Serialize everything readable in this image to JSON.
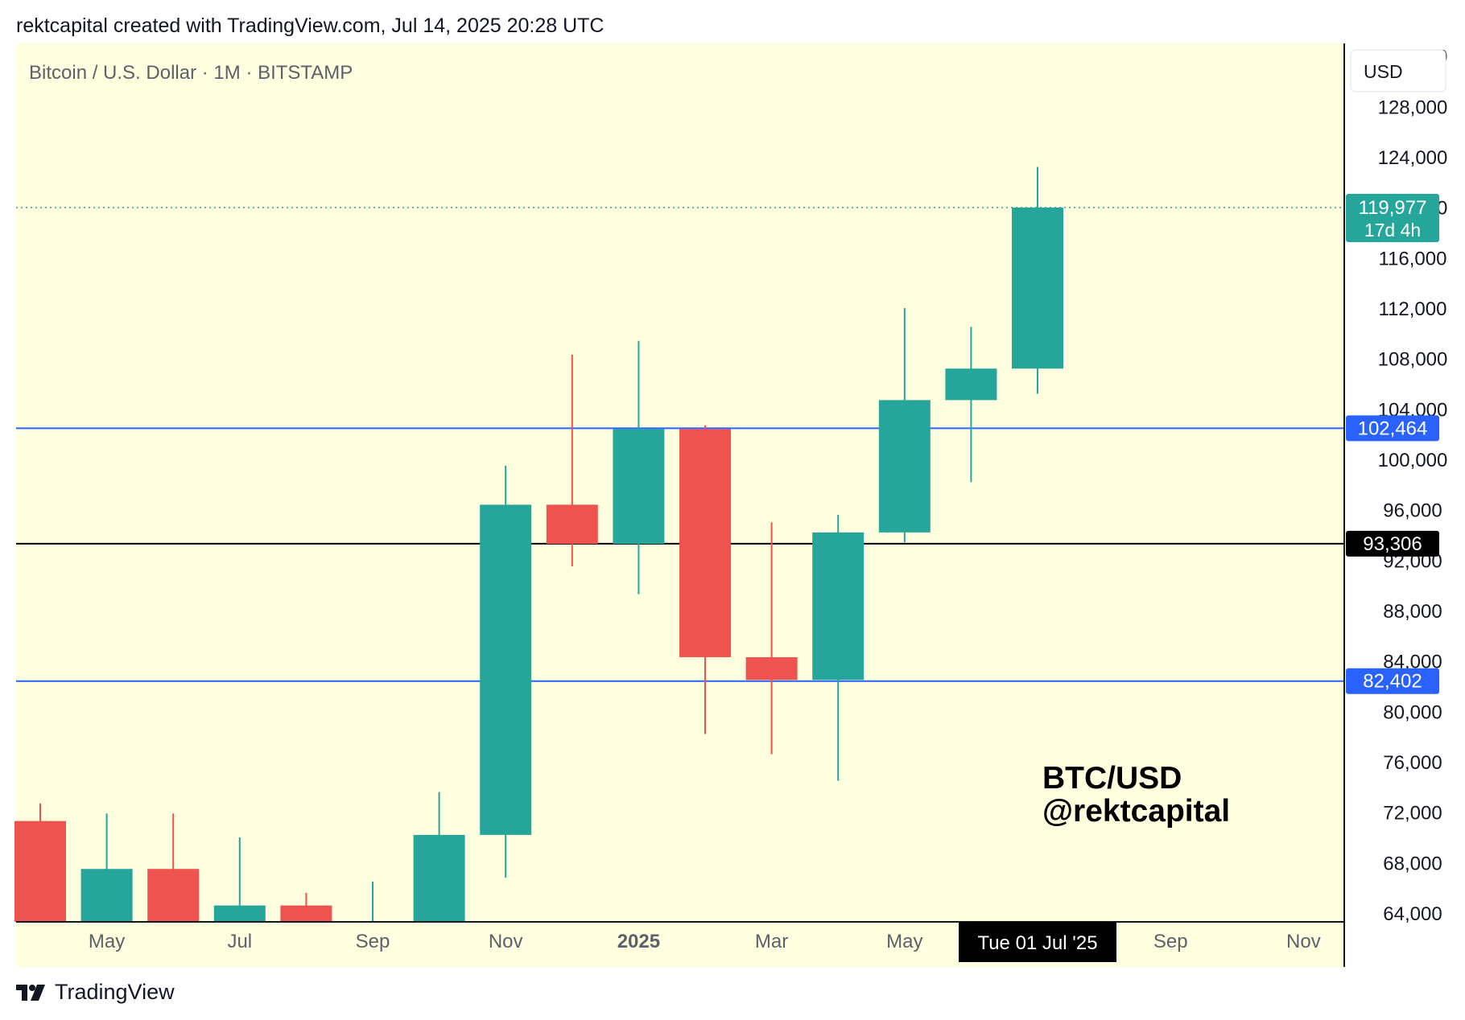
{
  "header": {
    "attribution": "rektcapital created with TradingView.com, Jul 14, 2025 20:28 UTC"
  },
  "footer": {
    "logo_icon": "tradingview-logo-icon",
    "label": "TradingView"
  },
  "colors": {
    "background": "#ffffe0",
    "up": "#26a69a",
    "down": "#ef5350",
    "blue_level": "#2962ff",
    "black_level": "#000000"
  },
  "chart_data": {
    "type": "candlestick",
    "title": "Bitcoin / U.S. Dollar · 1M · BITSTAMP",
    "currency": "USD",
    "watermark": [
      "BTC/USD",
      "@rektcapital"
    ],
    "ylim": [
      63300,
      133000
    ],
    "y_ticks": [
      64000,
      68000,
      72000,
      76000,
      80000,
      84000,
      88000,
      92000,
      96000,
      100000,
      104000,
      108000,
      112000,
      116000,
      120000,
      124000,
      128000,
      132000
    ],
    "y_tick_labels": [
      "64,000",
      "68,000",
      "72,000",
      "76,000",
      "80,000",
      "84,000",
      "88,000",
      "92,000",
      "96,000",
      "100,000",
      "104,000",
      "108,000",
      "112,000",
      "116,000",
      "120,000",
      "124,000",
      "128,000",
      "132,000"
    ],
    "x_ticks": [
      {
        "index": 1,
        "label": "May",
        "bold": false
      },
      {
        "index": 3,
        "label": "Jul",
        "bold": false
      },
      {
        "index": 5,
        "label": "Sep",
        "bold": false
      },
      {
        "index": 7,
        "label": "Nov",
        "bold": false
      },
      {
        "index": 9,
        "label": "2025",
        "bold": true
      },
      {
        "index": 11,
        "label": "Mar",
        "bold": false
      },
      {
        "index": 13,
        "label": "May",
        "bold": false
      },
      {
        "index": 17,
        "label": "Sep",
        "bold": false
      },
      {
        "index": 19,
        "label": "Nov",
        "bold": false
      }
    ],
    "crosshair": {
      "index": 15,
      "label": "Tue 01 Jul '25"
    },
    "candles": [
      {
        "month": "2024-04",
        "open": 71300,
        "high": 72700,
        "low": 60000,
        "close": 60600
      },
      {
        "month": "2024-05",
        "open": 60600,
        "high": 71900,
        "low": 56500,
        "close": 67500
      },
      {
        "month": "2024-06",
        "open": 67500,
        "high": 71900,
        "low": 58500,
        "close": 62700
      },
      {
        "month": "2024-07",
        "open": 62700,
        "high": 70000,
        "low": 53500,
        "close": 64600
      },
      {
        "month": "2024-08",
        "open": 64600,
        "high": 65600,
        "low": 49000,
        "close": 58900
      },
      {
        "month": "2024-09",
        "open": 58900,
        "high": 66500,
        "low": 52500,
        "close": 63300
      },
      {
        "month": "2024-10",
        "open": 63300,
        "high": 73600,
        "low": 58900,
        "close": 70200
      },
      {
        "month": "2024-11",
        "open": 70200,
        "high": 99500,
        "low": 66800,
        "close": 96400
      },
      {
        "month": "2024-12",
        "open": 96400,
        "high": 108300,
        "low": 91500,
        "close": 93300
      },
      {
        "month": "2025-01",
        "open": 93300,
        "high": 109400,
        "low": 89300,
        "close": 102400
      },
      {
        "month": "2025-02",
        "open": 102400,
        "high": 102700,
        "low": 78200,
        "close": 84300
      },
      {
        "month": "2025-03",
        "open": 84300,
        "high": 95000,
        "low": 76600,
        "close": 82500
      },
      {
        "month": "2025-04",
        "open": 82500,
        "high": 95600,
        "low": 74500,
        "close": 94200
      },
      {
        "month": "2025-05",
        "open": 94200,
        "high": 112000,
        "low": 93400,
        "close": 104700
      },
      {
        "month": "2025-06",
        "open": 104700,
        "high": 110500,
        "low": 98200,
        "close": 107200
      },
      {
        "month": "2025-07",
        "open": 107200,
        "high": 123200,
        "low": 105200,
        "close": 119977
      }
    ],
    "levels": [
      {
        "value": 102464,
        "label": "102,464",
        "style": "solid",
        "color": "#2962ff"
      },
      {
        "value": 93306,
        "label": "93,306",
        "style": "solid",
        "color": "#000000"
      },
      {
        "value": 82402,
        "label": "82,402",
        "style": "solid",
        "color": "#2962ff"
      }
    ],
    "last_price": {
      "value": 119977,
      "label": "119,977",
      "countdown": "17d 4h",
      "color": "#26a69a"
    }
  }
}
